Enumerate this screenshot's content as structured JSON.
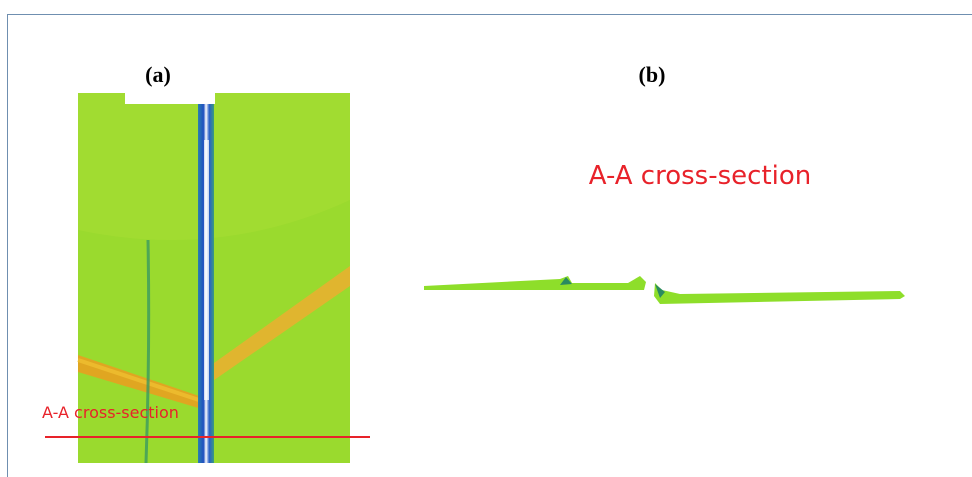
{
  "panels": [
    {
      "label": "(a)",
      "annotation": "A-A cross-section"
    },
    {
      "label": "(b)",
      "annotation": "A-A cross-section"
    }
  ]
}
